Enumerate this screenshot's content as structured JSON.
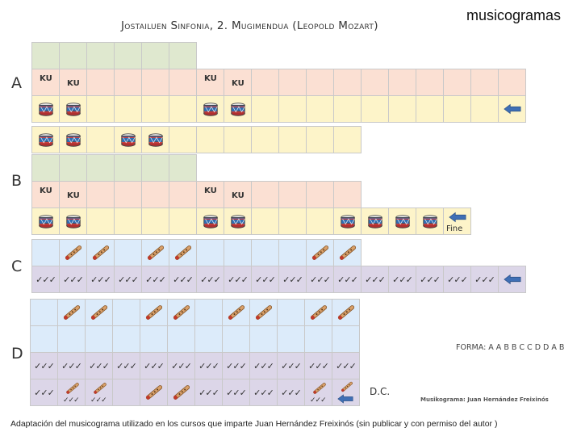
{
  "header": {
    "title": "Jostailuen Sinfonia, 2. Mugimendua (Leopold Mozart)",
    "brand": "musicogramas"
  },
  "sections": {
    "a": "A",
    "b": "B",
    "c": "C",
    "d": "D"
  },
  "lyrics": {
    "ku": "KU",
    "ticks": "✓✓✓"
  },
  "labels": {
    "fine": "Fine",
    "forma": "FORMA: A A B B C C D D A B",
    "dc": "D.C.",
    "credit": "Musikograma: Juan Hernández Freixinós"
  },
  "caption": "Adaptación del musicograma utilizado en los cursos que imparte Juan Hernández Freixinós (sin publicar y con permiso del autor )",
  "icons": {
    "drum": "drum-icon",
    "flute": "flute-icon",
    "arrow": "arrow-left-icon"
  },
  "colors": {
    "green": "#dfe8cf",
    "peach": "#fbe0d3",
    "yellow": "#fdf4c9",
    "lightblue": "#dcebfa",
    "lavender": "#dcd6e8",
    "arrow": "#3f6fb5"
  }
}
